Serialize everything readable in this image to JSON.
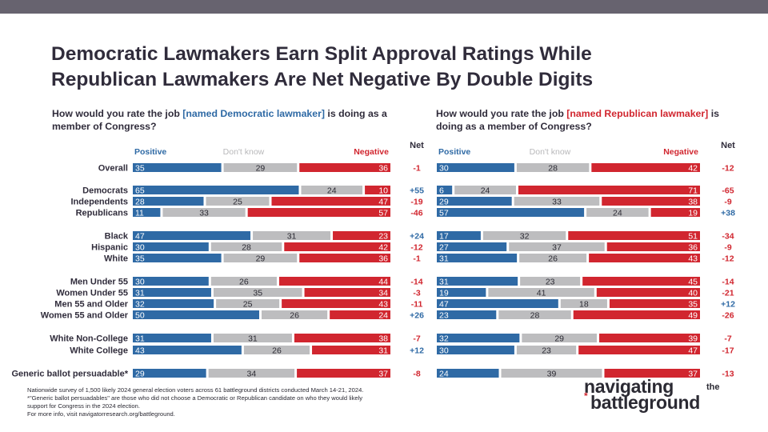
{
  "title": {
    "line1": "Democratic Lawmakers Earn Split Approval Ratings While",
    "line2": "Republican Lawmakers Are Net Negative By Double Digits"
  },
  "question_left": {
    "pre": "How would you rate the job ",
    "highlight": "[named Democratic lawmaker]",
    "post": " is doing as a member of Congress?"
  },
  "question_right": {
    "pre": "How would you rate the job ",
    "highlight": "[named Republican lawmaker]",
    "post": " is doing as a member of Congress?"
  },
  "colors": {
    "positive": "#2f6aa5",
    "dont_know": "#bdbdbf",
    "negative": "#d1262f",
    "text": "#2b2a33"
  },
  "chart_data": [
    {
      "type": "bar",
      "stacked": true,
      "orientation": "horizontal",
      "series": [
        {
          "name": "Positive",
          "values": [
            35,
            65,
            28,
            11,
            47,
            30,
            35,
            30,
            31,
            32,
            50,
            31,
            43,
            29
          ]
        },
        {
          "name": "Don't know",
          "values": [
            29,
            24,
            25,
            33,
            31,
            28,
            29,
            26,
            35,
            25,
            26,
            31,
            26,
            34
          ]
        },
        {
          "name": "Negative",
          "values": [
            36,
            10,
            47,
            57,
            23,
            42,
            36,
            44,
            34,
            43,
            24,
            38,
            31,
            37
          ]
        }
      ],
      "net_label": "Net",
      "net": [
        "-1",
        "+55",
        "-19",
        "-46",
        "+24",
        "-12",
        "-1",
        "-14",
        "-3",
        "-11",
        "+26",
        "-7",
        "+12",
        "-8"
      ]
    },
    {
      "type": "bar",
      "stacked": true,
      "orientation": "horizontal",
      "series": [
        {
          "name": "Positive",
          "values": [
            30,
            6,
            29,
            57,
            17,
            27,
            31,
            31,
            19,
            47,
            23,
            32,
            30,
            24
          ]
        },
        {
          "name": "Don't know",
          "values": [
            28,
            24,
            33,
            24,
            32,
            37,
            26,
            23,
            41,
            18,
            28,
            29,
            23,
            39
          ]
        },
        {
          "name": "Negative",
          "values": [
            42,
            71,
            38,
            19,
            51,
            36,
            43,
            45,
            40,
            35,
            49,
            39,
            47,
            37
          ]
        }
      ],
      "net_label": "Net",
      "net": [
        "-12",
        "-65",
        "-9",
        "+38",
        "-34",
        "-9",
        "-12",
        "-14",
        "-21",
        "+12",
        "-26",
        "-7",
        "-17",
        "-13"
      ]
    }
  ],
  "categories": [
    "Overall",
    "Democrats",
    "Independents",
    "Republicans",
    "Black",
    "Hispanic",
    "White",
    "Men Under 55",
    "Women Under 55",
    "Men 55 and Older",
    "Women 55 and Older",
    "White Non-College",
    "White College",
    "Generic ballot persuadable*"
  ],
  "footnote": {
    "line1": "Nationwide survey of 1,500 likely 2024 general election voters across 61 battleground districts conducted March 14-21, 2024.",
    "line2": "*\"Generic ballot persuadables\" are those who did not choose a Democratic or Republican candidate on who they would likely",
    "line3": "support for Congress in the 2024 election.",
    "line4": "For more info, visit navigatorresearch.org/battleground."
  },
  "logo": {
    "word1": "navigating",
    "word2": "the",
    "word3": "battleground",
    "star": "*"
  }
}
